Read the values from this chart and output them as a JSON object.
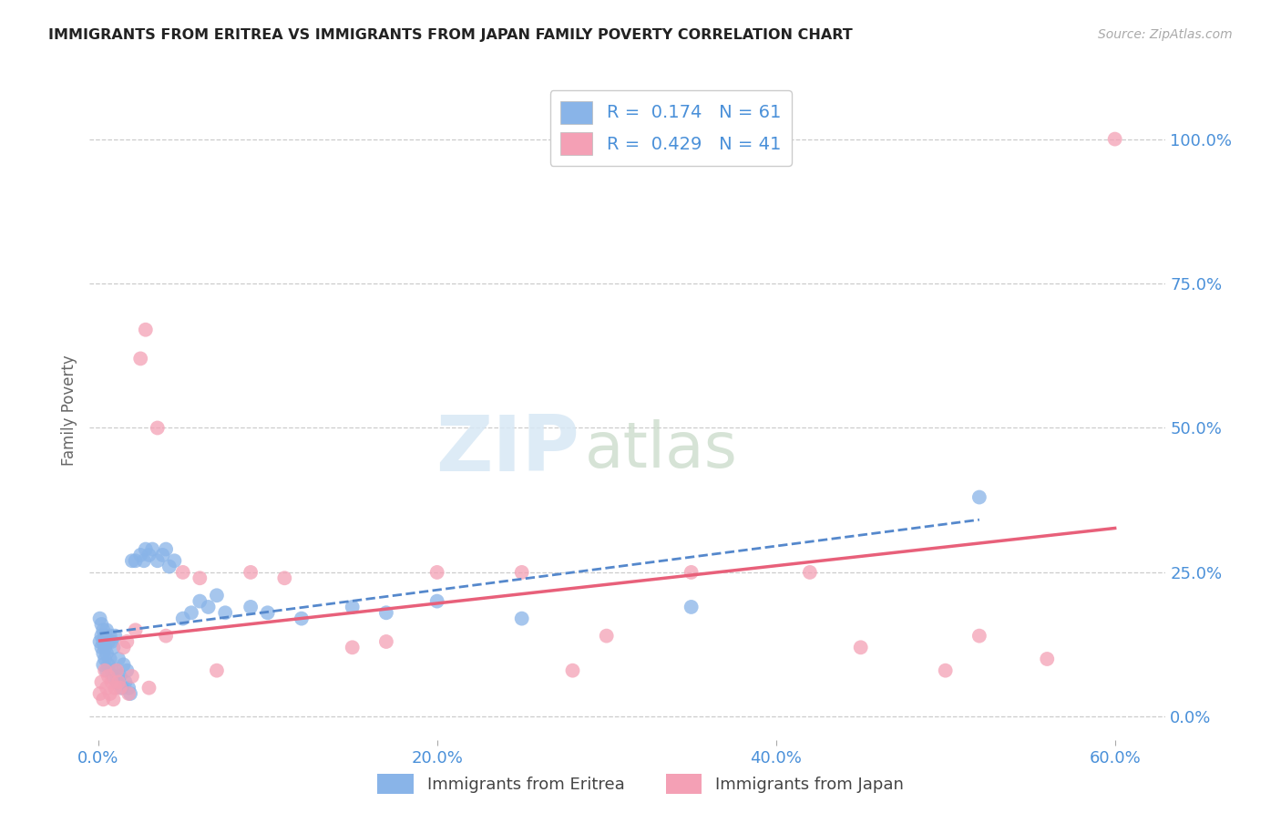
{
  "title": "IMMIGRANTS FROM ERITREA VS IMMIGRANTS FROM JAPAN FAMILY POVERTY CORRELATION CHART",
  "source": "Source: ZipAtlas.com",
  "ylabel": "Family Poverty",
  "xlim": [
    -0.005,
    0.63
  ],
  "ylim": [
    -0.04,
    1.1
  ],
  "xtick_vals": [
    0.0,
    0.2,
    0.4,
    0.6
  ],
  "xtick_labels": [
    "0.0%",
    "20.0%",
    "40.0%",
    "60.0%"
  ],
  "ytick_vals": [
    0.0,
    0.25,
    0.5,
    0.75,
    1.0
  ],
  "ytick_labels": [
    "0.0%",
    "25.0%",
    "50.0%",
    "75.0%",
    "100.0%"
  ],
  "eritrea_color": "#89b4e8",
  "japan_color": "#f4a0b5",
  "eritrea_R": 0.174,
  "eritrea_N": 61,
  "japan_R": 0.429,
  "japan_N": 41,
  "eritrea_line_color": "#5588cc",
  "japan_line_color": "#e8607a",
  "background_color": "#ffffff",
  "grid_color": "#cccccc",
  "watermark_zip": "ZIP",
  "watermark_atlas": "atlas",
  "eritrea_x": [
    0.001,
    0.001,
    0.002,
    0.002,
    0.002,
    0.003,
    0.003,
    0.003,
    0.003,
    0.004,
    0.004,
    0.004,
    0.005,
    0.005,
    0.005,
    0.006,
    0.006,
    0.007,
    0.007,
    0.008,
    0.008,
    0.009,
    0.009,
    0.01,
    0.01,
    0.011,
    0.012,
    0.013,
    0.014,
    0.015,
    0.016,
    0.017,
    0.018,
    0.019,
    0.02,
    0.022,
    0.025,
    0.027,
    0.028,
    0.03,
    0.032,
    0.035,
    0.038,
    0.04,
    0.042,
    0.045,
    0.05,
    0.055,
    0.06,
    0.065,
    0.07,
    0.075,
    0.09,
    0.1,
    0.12,
    0.15,
    0.17,
    0.2,
    0.25,
    0.35,
    0.52
  ],
  "eritrea_y": [
    0.17,
    0.13,
    0.16,
    0.14,
    0.12,
    0.15,
    0.13,
    0.11,
    0.09,
    0.14,
    0.12,
    0.1,
    0.15,
    0.11,
    0.08,
    0.13,
    0.09,
    0.14,
    0.1,
    0.13,
    0.08,
    0.12,
    0.07,
    0.14,
    0.08,
    0.06,
    0.1,
    0.07,
    0.05,
    0.09,
    0.06,
    0.08,
    0.05,
    0.04,
    0.27,
    0.27,
    0.28,
    0.27,
    0.29,
    0.28,
    0.29,
    0.27,
    0.28,
    0.29,
    0.26,
    0.27,
    0.17,
    0.18,
    0.2,
    0.19,
    0.21,
    0.18,
    0.19,
    0.18,
    0.17,
    0.19,
    0.18,
    0.2,
    0.17,
    0.19,
    0.38
  ],
  "japan_x": [
    0.001,
    0.002,
    0.003,
    0.004,
    0.005,
    0.006,
    0.007,
    0.008,
    0.009,
    0.01,
    0.011,
    0.012,
    0.013,
    0.015,
    0.017,
    0.018,
    0.02,
    0.022,
    0.025,
    0.028,
    0.03,
    0.035,
    0.04,
    0.05,
    0.06,
    0.07,
    0.09,
    0.11,
    0.15,
    0.17,
    0.2,
    0.25,
    0.28,
    0.3,
    0.35,
    0.42,
    0.45,
    0.5,
    0.52,
    0.56,
    0.6
  ],
  "japan_y": [
    0.04,
    0.06,
    0.03,
    0.08,
    0.05,
    0.07,
    0.04,
    0.06,
    0.03,
    0.05,
    0.08,
    0.06,
    0.05,
    0.12,
    0.13,
    0.04,
    0.07,
    0.15,
    0.62,
    0.67,
    0.05,
    0.5,
    0.14,
    0.25,
    0.24,
    0.08,
    0.25,
    0.24,
    0.12,
    0.13,
    0.25,
    0.25,
    0.08,
    0.14,
    0.25,
    0.25,
    0.12,
    0.08,
    0.14,
    0.1,
    1.0
  ]
}
